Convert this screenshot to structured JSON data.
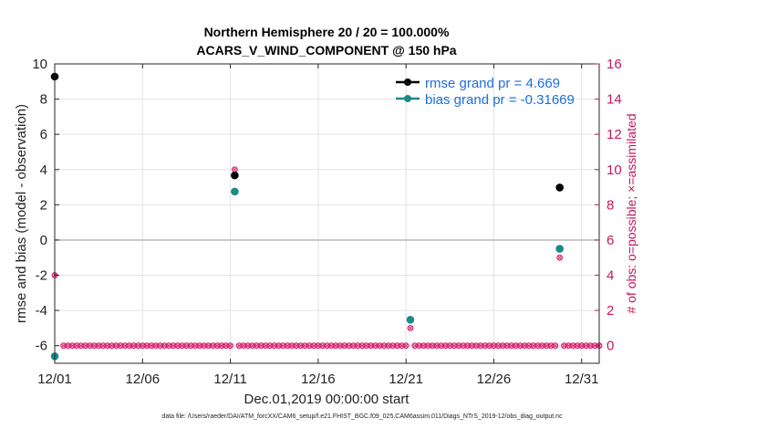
{
  "chart_data": {
    "type": "scatter",
    "title": [
      "Northern Hemisphere 20 / 20 = 100.000%",
      "ACARS_V_WIND_COMPONENT @ 150 hPa"
    ],
    "xlabel": "Dec.01,2019 00:00:00 start",
    "ylabel_left": "rmse and bias (model - observation)",
    "ylabel_right": "# of obs: o=possible; ×=assimilated",
    "footer": "data file: /Users/raeder/DAI/ATM_forcXX/CAM6_setup/f.e21.FHIST_BGC.f09_025.CAM6assim.011/Diags_NTrS_2019-12/obs_diag_output.nc",
    "x_range": [
      0,
      31
    ],
    "y_left_range": [
      -7,
      10
    ],
    "y_right_range": [
      -1,
      16
    ],
    "x_ticks": [
      {
        "value": 0,
        "label": "12/01"
      },
      {
        "value": 5,
        "label": "12/06"
      },
      {
        "value": 10,
        "label": "12/11"
      },
      {
        "value": 15,
        "label": "12/16"
      },
      {
        "value": 20,
        "label": "12/21"
      },
      {
        "value": 25,
        "label": "12/26"
      },
      {
        "value": 30,
        "label": "12/31"
      }
    ],
    "y_left_ticks": [
      {
        "value": -6,
        "label": "-6"
      },
      {
        "value": -4,
        "label": "-4"
      },
      {
        "value": -2,
        "label": "-2"
      },
      {
        "value": 0,
        "label": "0"
      },
      {
        "value": 2,
        "label": "2"
      },
      {
        "value": 4,
        "label": "4"
      },
      {
        "value": 6,
        "label": "6"
      },
      {
        "value": 8,
        "label": "8"
      },
      {
        "value": 10,
        "label": "10"
      }
    ],
    "y_right_ticks": [
      {
        "value": 0,
        "label": "0"
      },
      {
        "value": 2,
        "label": "2"
      },
      {
        "value": 4,
        "label": "4"
      },
      {
        "value": 6,
        "label": "6"
      },
      {
        "value": 8,
        "label": "8"
      },
      {
        "value": 10,
        "label": "10"
      },
      {
        "value": 12,
        "label": "12"
      },
      {
        "value": 14,
        "label": "14"
      },
      {
        "value": 16,
        "label": "16"
      }
    ],
    "legend": {
      "position": "top-right",
      "entries": [
        {
          "label": "rmse grand pr = 4.669",
          "color": "#000000"
        },
        {
          "label": "bias grand pr = -0.31669",
          "color": "#1a8a8a"
        }
      ]
    },
    "colors": {
      "rmse": "#000000",
      "bias": "#1a8a8a",
      "obs": "#d6246e",
      "text_obs": "#c2185b",
      "legend_text": "#1e6fd9",
      "zero_line": "#b8b8b8",
      "grid": "#e3e3e3"
    },
    "series": [
      {
        "name": "rmse",
        "axis": "left",
        "x": [
          0,
          10.25,
          28.75
        ],
        "y": [
          9.28,
          3.67,
          2.98
        ]
      },
      {
        "name": "bias",
        "axis": "left",
        "x": [
          0,
          10.25,
          20.25,
          28.75
        ],
        "y": [
          -6.6,
          2.75,
          -4.53,
          -0.5
        ]
      },
      {
        "name": "obs_possible",
        "axis": "right",
        "x": [
          0,
          10.25,
          20.25,
          28.75
        ],
        "y": [
          4,
          10,
          1,
          5
        ]
      },
      {
        "name": "obs_assimilated",
        "axis": "right",
        "x": [
          0,
          10.25,
          20.25,
          28.75
        ],
        "y": [
          4,
          10,
          1,
          5
        ]
      }
    ],
    "zero_count_points": {
      "axis": "right",
      "value": 0,
      "x_start": 0.5,
      "x_end": 31,
      "step": 0.25,
      "skip_x": [
        10.25,
        20.25,
        28.75
      ]
    }
  }
}
